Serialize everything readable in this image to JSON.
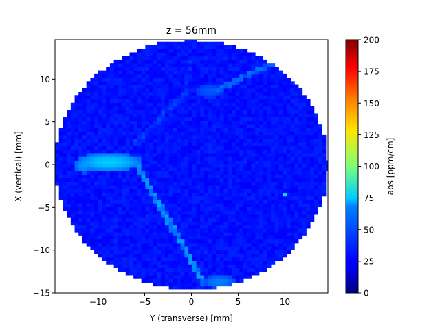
{
  "chart_data": {
    "type": "heatmap",
    "title": "z = 56mm",
    "xlabel": "Y (transverse) [mm]",
    "ylabel": "X (vertical) [mm]",
    "xlim": [
      -14.6,
      14.6
    ],
    "ylim": [
      -15,
      14.6
    ],
    "xticks": [
      -10,
      -5,
      0,
      5,
      10
    ],
    "yticks": [
      -15,
      -10,
      -5,
      0,
      5,
      10
    ],
    "xtick_labels": [
      "−10",
      "−5",
      "0",
      "5",
      "10"
    ],
    "ytick_labels": [
      "−15",
      "−10",
      "−5",
      "0",
      "5",
      "10"
    ],
    "aperture_radius": 14.6,
    "colormap": "jet",
    "colorbar": {
      "label": "abs [ppm/cm]",
      "range": [
        0,
        200
      ],
      "ticks": [
        0,
        25,
        50,
        75,
        100,
        125,
        150,
        175,
        200
      ],
      "tick_labels": [
        "0",
        "25",
        "50",
        "75",
        "100",
        "125",
        "150",
        "175",
        "200"
      ]
    },
    "background_value": 28,
    "features": [
      {
        "type": "blob",
        "x": -8.8,
        "y": 0.3,
        "rx": 3.6,
        "ry": 1.1,
        "value": 65
      },
      {
        "type": "blob",
        "x": -11.5,
        "y": -0.1,
        "rx": 1.1,
        "ry": 0.9,
        "value": 55
      },
      {
        "type": "blob",
        "x": 1.9,
        "y": 8.6,
        "rx": 1.5,
        "ry": 0.8,
        "value": 42
      },
      {
        "type": "blob",
        "x": 3.0,
        "y": -13.7,
        "rx": 1.7,
        "ry": 0.8,
        "value": 50
      },
      {
        "type": "line",
        "x1": -5.9,
        "y1": 0.2,
        "x2": 1.2,
        "y2": -13.7,
        "value": 58
      },
      {
        "type": "line",
        "x1": 2.5,
        "y1": 8.6,
        "x2": 8.8,
        "y2": 11.9,
        "value": 48
      },
      {
        "type": "line",
        "x1": -5.8,
        "y1": 2.6,
        "x2": -0.7,
        "y2": 8.5,
        "value": 40
      },
      {
        "type": "line",
        "x1": -0.6,
        "y1": 8.8,
        "x2": 0.0,
        "y2": 12.2,
        "value": 36
      },
      {
        "type": "point",
        "x": 9.9,
        "y": -3.4,
        "value": 70
      },
      {
        "type": "point",
        "x": 8.9,
        "y": 11.9,
        "value": 80
      }
    ]
  }
}
